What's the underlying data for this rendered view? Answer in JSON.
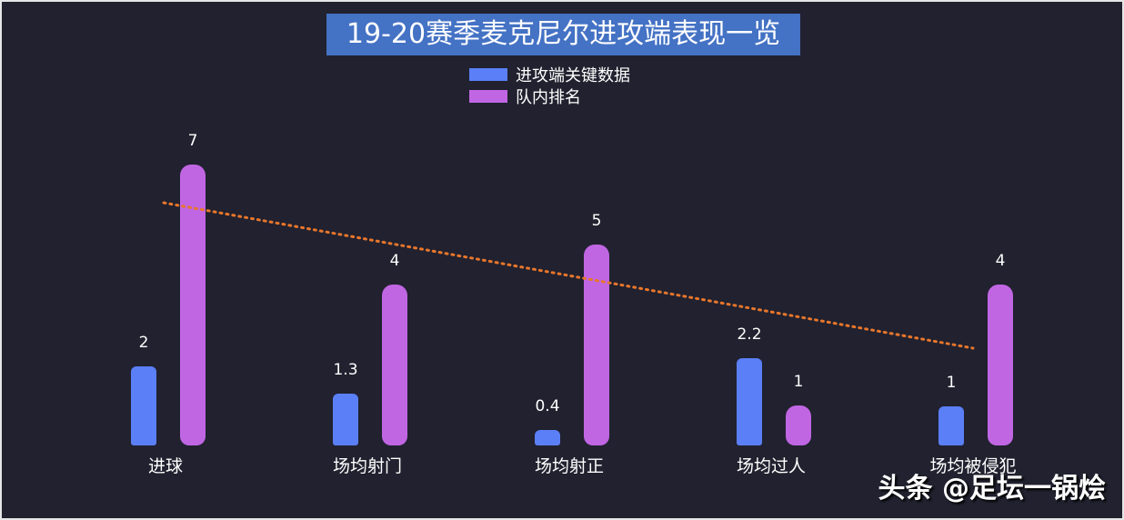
{
  "title": "19-20赛季麦克尼尔进攻端表现一览",
  "legend": [
    {
      "label": "进攻端关键数据",
      "color": "#5b7ff7"
    },
    {
      "label": "队内排名",
      "color": "#c066e3"
    }
  ],
  "watermark": "头条 @足坛一锅烩",
  "chart_data": {
    "type": "bar",
    "title": "19-20赛季麦克尼尔进攻端表现一览",
    "categories": [
      "进球",
      "场均射门",
      "场均射正",
      "场均过人",
      "场均被侵犯"
    ],
    "series": [
      {
        "name": "进攻端关键数据",
        "values": [
          2,
          1.3,
          0.4,
          2.2,
          1
        ],
        "color": "#5b7ff7"
      },
      {
        "name": "队内排名",
        "values": [
          7,
          4,
          5,
          1,
          4
        ],
        "color": "#c066e3"
      }
    ],
    "value_labels": {
      "进攻端关键数据": [
        "2",
        "1.3",
        "0.4",
        "2.2",
        "1"
      ],
      "队内排名": [
        "7",
        "4",
        "5",
        "1",
        "4"
      ]
    },
    "trendline": {
      "series": "队内排名",
      "type": "linear",
      "style": "dotted",
      "color": "#e8762b"
    },
    "xlabel": "",
    "ylabel": "",
    "grid": false,
    "legend_position": "top"
  }
}
